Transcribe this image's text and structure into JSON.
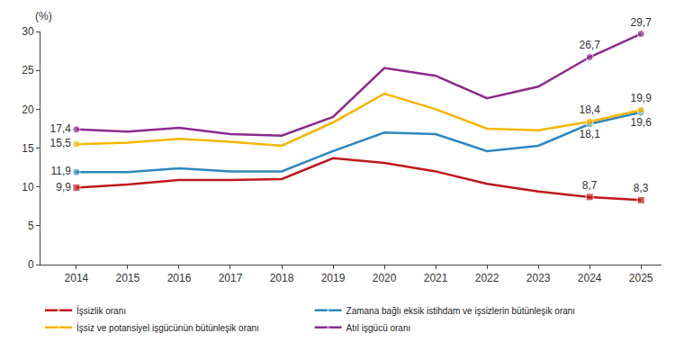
{
  "chart_data": {
    "type": "line",
    "ylabel": "(%)",
    "categories": [
      "2014",
      "2015",
      "2016",
      "2017",
      "2018",
      "2019",
      "2020",
      "2021",
      "2022",
      "2023",
      "2024",
      "2025"
    ],
    "ylim": [
      0,
      30
    ],
    "yticks": [
      0,
      5,
      10,
      15,
      20,
      25,
      30
    ],
    "grid": false,
    "legend": "bottom",
    "data_labels": true,
    "series": [
      {
        "name": "İşsizlik oranı",
        "color": "#c0161e",
        "marker": "square",
        "values": [
          9.9,
          10.3,
          10.9,
          10.9,
          11.0,
          13.7,
          13.1,
          12.0,
          10.4,
          9.4,
          8.7,
          8.3
        ],
        "value_labels": [
          "9,9",
          null,
          null,
          null,
          null,
          null,
          null,
          null,
          null,
          null,
          "8,7",
          "8,3"
        ]
      },
      {
        "name": "Zamana bağlı eksik istihdam ve işsizlerin bütünleşik oranı",
        "color": "#2e86c1",
        "marker": "circle",
        "values": [
          11.9,
          11.9,
          12.4,
          12.0,
          12.0,
          14.6,
          17.0,
          16.8,
          14.6,
          15.3,
          18.1,
          19.6
        ],
        "value_labels": [
          "11,9",
          null,
          null,
          null,
          null,
          null,
          null,
          null,
          null,
          null,
          "18,1",
          "19,6"
        ]
      },
      {
        "name": "İşsiz ve potansiyel işgücünün bütünleşik oranı",
        "color": "#f5b700",
        "marker": "circle",
        "values": [
          15.5,
          15.7,
          16.2,
          15.8,
          15.3,
          18.3,
          22.0,
          20.0,
          17.5,
          17.3,
          18.4,
          19.9
        ],
        "value_labels": [
          "15,5",
          null,
          null,
          null,
          null,
          null,
          null,
          null,
          null,
          null,
          "18,4",
          "19,9"
        ]
      },
      {
        "name": "Atıl işgücü oranı",
        "color": "#8b2a8a",
        "marker": "circle",
        "values": [
          17.4,
          17.1,
          17.6,
          16.8,
          16.6,
          19.0,
          25.3,
          24.3,
          21.4,
          22.9,
          26.7,
          29.7
        ],
        "value_labels": [
          "17,4",
          null,
          null,
          null,
          null,
          null,
          null,
          null,
          null,
          null,
          "26,7",
          "29,7"
        ]
      }
    ]
  }
}
